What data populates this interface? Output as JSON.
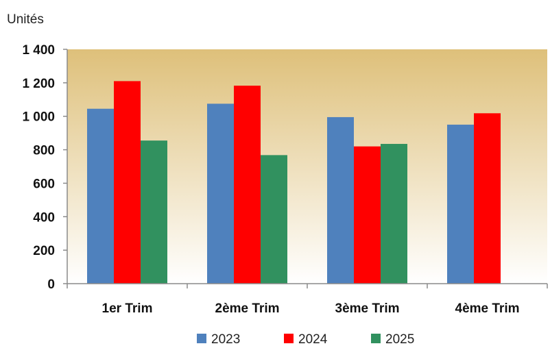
{
  "chart_data": {
    "type": "bar",
    "title": "",
    "xlabel": "",
    "ylabel": "Unités",
    "categories": [
      "1er Trim",
      "2ème Trim",
      "3ème Trim",
      "4ème Trim"
    ],
    "series": [
      {
        "name": "2023",
        "color": "#4F81BD",
        "values": [
          1045,
          1075,
          995,
          950
        ]
      },
      {
        "name": "2024",
        "color": "#FF0000",
        "values": [
          1210,
          1183,
          820,
          1018
        ]
      },
      {
        "name": "2025",
        "color": "#31915F",
        "values": [
          855,
          768,
          835,
          null
        ]
      }
    ],
    "ylim": [
      0,
      1400
    ],
    "yticks": [
      0,
      200,
      400,
      600,
      800,
      1000,
      1200,
      1400
    ],
    "ytick_labels": [
      "0",
      "200",
      "400",
      "600",
      "800",
      "1 000",
      "1 200",
      "1 400"
    ],
    "grid": false,
    "legend_position": "bottom",
    "background": {
      "gradient_top": "#DEC07A",
      "gradient_bottom": "#FFFFFF"
    }
  }
}
